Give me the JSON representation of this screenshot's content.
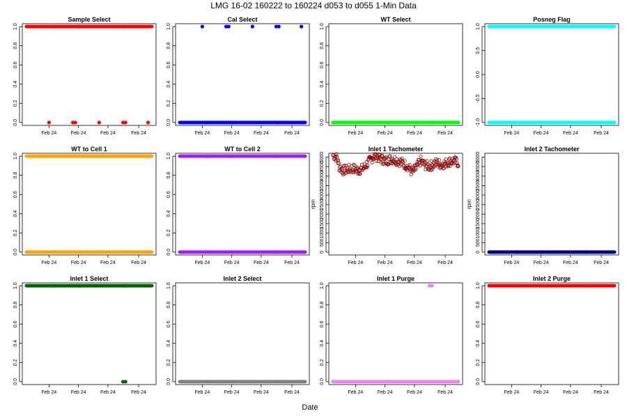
{
  "figure": {
    "title": "LMG   16-02    160222 to 160224    d053 to d055   1-Min Data",
    "xlabel": "Date"
  },
  "chart_data": [
    {
      "type": "scatter",
      "title": "Sample Select",
      "ylabel": "",
      "ylim": [
        -0.03,
        1.03
      ],
      "yticks": [
        "0.0",
        "0.2",
        "0.4",
        "0.6",
        "0.8",
        "1.0"
      ],
      "ytick_values": [
        0,
        0.2,
        0.4,
        0.6,
        0.8,
        1.0
      ],
      "xticks": [
        "Feb 24",
        "Feb 24",
        "Feb 24",
        "Feb 24"
      ],
      "color": "#ff0000",
      "marker": "filled",
      "series": [
        {
          "x_range": [
            0,
            1
          ],
          "y": 1
        },
        {
          "x": [
            0.18,
            0.37,
            0.39,
            0.58,
            0.77,
            0.79,
            0.97
          ],
          "y": 0
        }
      ]
    },
    {
      "type": "scatter",
      "title": "Cal Select",
      "ylabel": "",
      "ylim": [
        -0.03,
        1.03
      ],
      "yticks": [
        "0.0",
        "0.2",
        "0.4",
        "0.6",
        "0.8",
        "1.0"
      ],
      "ytick_values": [
        0,
        0.2,
        0.4,
        0.6,
        0.8,
        1.0
      ],
      "xticks": [
        "Feb 24",
        "Feb 24",
        "Feb 24",
        "Feb 24"
      ],
      "color": "#0000ff",
      "marker": "filled",
      "series": [
        {
          "x_range": [
            0,
            1
          ],
          "y": 0
        },
        {
          "x": [
            0.18,
            0.37,
            0.39,
            0.58,
            0.77,
            0.79,
            0.97
          ],
          "y": 1
        }
      ]
    },
    {
      "type": "scatter",
      "title": "WT Select",
      "ylabel": "",
      "ylim": [
        -0.03,
        1.03
      ],
      "yticks": [
        "0.0",
        "0.2",
        "0.4",
        "0.6",
        "0.8",
        "1.0"
      ],
      "ytick_values": [
        0,
        0.2,
        0.4,
        0.6,
        0.8,
        1.0
      ],
      "xticks": [
        "Feb 24",
        "Feb 24",
        "Feb 24",
        "Feb 24"
      ],
      "color": "#00ff00",
      "marker": "filled",
      "series": [
        {
          "x_range": [
            0,
            1
          ],
          "y": 0
        }
      ]
    },
    {
      "type": "scatter",
      "title": "Posneg Flag",
      "ylabel": "",
      "ylim": [
        -1.06,
        1.06
      ],
      "yticks": [
        "-1.0",
        "-0.5",
        "0.0",
        "0.5",
        "1.0"
      ],
      "ytick_values": [
        -1,
        -0.5,
        0,
        0.5,
        1.0
      ],
      "xticks": [
        "Feb 24",
        "Feb 24",
        "Feb 24",
        "Feb 24"
      ],
      "color": "#00ffff",
      "marker": "filled",
      "series": [
        {
          "x_range": [
            0,
            1
          ],
          "y": 1
        },
        {
          "x_range": [
            0,
            1
          ],
          "y": -1
        }
      ]
    },
    {
      "type": "scatter",
      "title": "WT to Cell 1",
      "ylabel": "",
      "ylim": [
        -0.03,
        1.03
      ],
      "yticks": [
        "0.0",
        "0.2",
        "0.4",
        "0.6",
        "0.8",
        "1.0"
      ],
      "ytick_values": [
        0,
        0.2,
        0.4,
        0.6,
        0.8,
        1.0
      ],
      "xticks": [
        "Feb 24",
        "Feb 24",
        "Feb 24",
        "Feb 24"
      ],
      "color": "#ffa500",
      "marker": "filled",
      "series": [
        {
          "x_range": [
            0,
            1
          ],
          "y": 1
        },
        {
          "x_range": [
            0,
            1
          ],
          "y": 0
        }
      ]
    },
    {
      "type": "scatter",
      "title": "WT to Cell 2",
      "ylabel": "",
      "ylim": [
        -0.03,
        1.03
      ],
      "yticks": [
        "0.0",
        "0.2",
        "0.4",
        "0.6",
        "0.8",
        "1.0"
      ],
      "ytick_values": [
        0,
        0.2,
        0.4,
        0.6,
        0.8,
        1.0
      ],
      "xticks": [
        "Feb 24",
        "Feb 24",
        "Feb 24",
        "Feb 24"
      ],
      "color": "#a020f0",
      "marker": "filled",
      "series": [
        {
          "x_range": [
            0,
            1
          ],
          "y": 1
        },
        {
          "x_range": [
            0,
            1
          ],
          "y": 0
        }
      ]
    },
    {
      "type": "scatter",
      "title": "Inlet 1 Tachometer",
      "ylabel": "rpm",
      "ylim": [
        -150,
        5200
      ],
      "yticks": [
        "0",
        "500",
        "1000",
        "1500",
        "2000",
        "2500",
        "3000",
        "3500",
        "4000",
        "4500",
        "5000"
      ],
      "ytick_values": [
        0,
        500,
        1000,
        1500,
        2000,
        2500,
        3000,
        3500,
        4000,
        4500,
        5000
      ],
      "xticks": [
        "Feb 24",
        "Feb 24",
        "Feb 24",
        "Feb 24"
      ],
      "color": "#8b0000",
      "marker": "open",
      "profile": [
        [
          0.0,
          5100
        ],
        [
          0.03,
          5000
        ],
        [
          0.05,
          4500
        ],
        [
          0.08,
          4300
        ],
        [
          0.12,
          4350
        ],
        [
          0.16,
          4400
        ],
        [
          0.2,
          4300
        ],
        [
          0.24,
          4400
        ],
        [
          0.28,
          4700
        ],
        [
          0.33,
          5100
        ],
        [
          0.37,
          4950
        ],
        [
          0.42,
          4800
        ],
        [
          0.46,
          4900
        ],
        [
          0.5,
          4850
        ],
        [
          0.55,
          4700
        ],
        [
          0.6,
          4500
        ],
        [
          0.63,
          4200
        ],
        [
          0.66,
          4400
        ],
        [
          0.7,
          4800
        ],
        [
          0.73,
          4600
        ],
        [
          0.77,
          4500
        ],
        [
          0.82,
          4700
        ],
        [
          0.87,
          4600
        ],
        [
          0.92,
          4750
        ],
        [
          0.96,
          4800
        ],
        [
          1.0,
          4700
        ]
      ],
      "spread": 250
    },
    {
      "type": "scatter",
      "title": "Inlet 2 Tachometer",
      "ylabel": "rpm",
      "ylim": [
        -150,
        5200
      ],
      "yticks": [
        "0",
        "500",
        "1000",
        "1500",
        "2000",
        "2500",
        "3000",
        "3500",
        "4000",
        "4500",
        "5000"
      ],
      "ytick_values": [
        0,
        500,
        1000,
        1500,
        2000,
        2500,
        3000,
        3500,
        4000,
        4500,
        5000
      ],
      "xticks": [
        "Feb 24",
        "Feb 24",
        "Feb 24",
        "Feb 24"
      ],
      "color": "#00008b",
      "marker": "filled",
      "series": [
        {
          "x_range": [
            0,
            1
          ],
          "y": 0
        }
      ]
    },
    {
      "type": "scatter",
      "title": "Inlet 1 Select",
      "ylabel": "",
      "ylim": [
        -0.03,
        1.03
      ],
      "yticks": [
        "0.0",
        "0.2",
        "0.4",
        "0.6",
        "0.8",
        "1.0"
      ],
      "ytick_values": [
        0,
        0.2,
        0.4,
        0.6,
        0.8,
        1.0
      ],
      "xticks": [
        "Feb 24",
        "Feb 24",
        "Feb 24",
        "Feb 24"
      ],
      "color": "#006400",
      "marker": "filled",
      "series": [
        {
          "x_range": [
            0,
            1
          ],
          "y": 1
        },
        {
          "x": [
            0.77,
            0.79
          ],
          "y": 0
        }
      ]
    },
    {
      "type": "scatter",
      "title": "Inlet 2 Select",
      "ylabel": "",
      "ylim": [
        -0.03,
        1.03
      ],
      "yticks": [
        "0.0",
        "0.2",
        "0.4",
        "0.6",
        "0.8",
        "1.0"
      ],
      "ytick_values": [
        0,
        0.2,
        0.4,
        0.6,
        0.8,
        1.0
      ],
      "xticks": [
        "Feb 24",
        "Feb 24",
        "Feb 24",
        "Feb 24"
      ],
      "color": "#808080",
      "marker": "filled",
      "series": [
        {
          "x_range": [
            0,
            1
          ],
          "y": 0
        }
      ]
    },
    {
      "type": "scatter",
      "title": "Inlet 1 Purge",
      "ylabel": "",
      "ylim": [
        -0.03,
        1.03
      ],
      "yticks": [
        "0.0",
        "0.2",
        "0.4",
        "0.6",
        "0.8",
        "1.0"
      ],
      "ytick_values": [
        0,
        0.2,
        0.4,
        0.6,
        0.8,
        1.0
      ],
      "xticks": [
        "Feb 24",
        "Feb 24",
        "Feb 24",
        "Feb 24"
      ],
      "color": "#ee82ee",
      "marker": "filled",
      "series": [
        {
          "x_range": [
            0,
            1
          ],
          "y": 0
        },
        {
          "x": [
            0.77,
            0.79
          ],
          "y": 1
        }
      ]
    },
    {
      "type": "scatter",
      "title": "Inlet 2 Purge",
      "ylabel": "",
      "ylim": [
        -0.03,
        1.03
      ],
      "yticks": [
        "0.0",
        "0.2",
        "0.4",
        "0.6",
        "0.8",
        "1.0"
      ],
      "ytick_values": [
        0,
        0.2,
        0.4,
        0.6,
        0.8,
        1.0
      ],
      "xticks": [
        "Feb 24",
        "Feb 24",
        "Feb 24",
        "Feb 24"
      ],
      "color": "#ff0000",
      "marker": "filled",
      "series": [
        {
          "x_range": [
            0,
            1
          ],
          "y": 1
        }
      ]
    }
  ]
}
